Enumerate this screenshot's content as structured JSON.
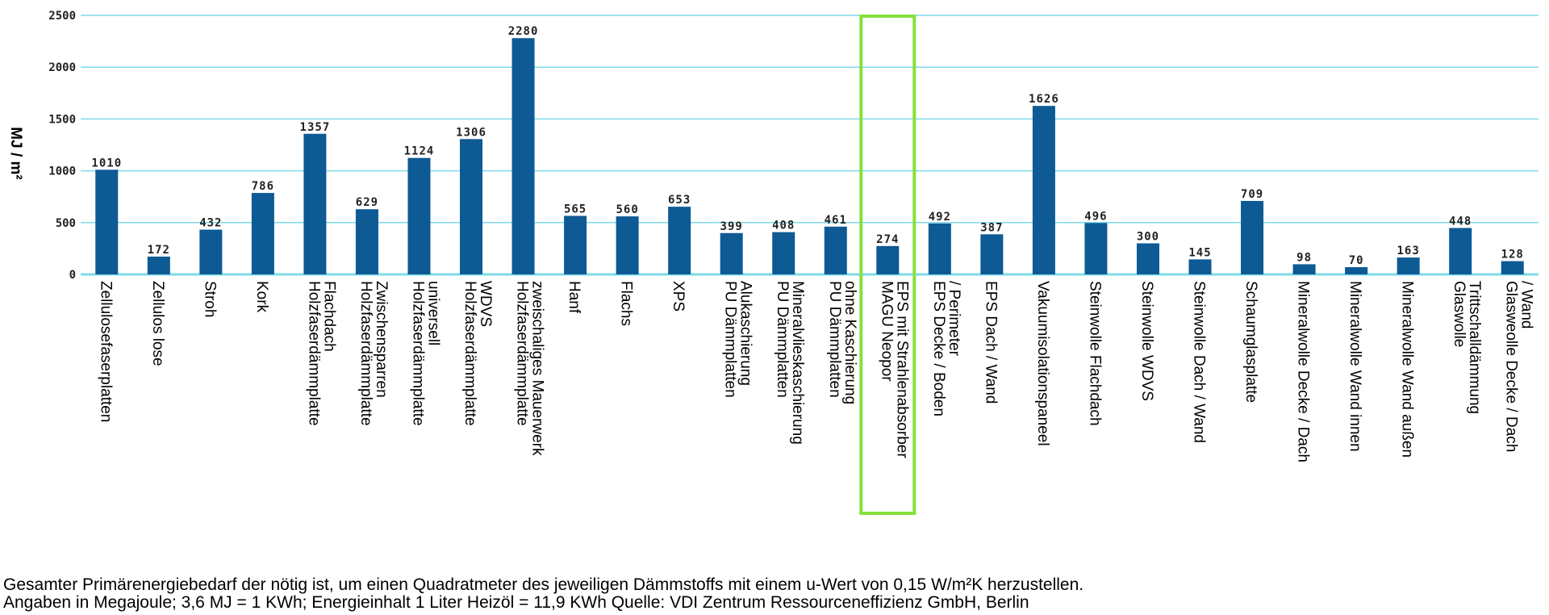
{
  "chart_data": {
    "type": "bar",
    "ylabel": "MJ / m²",
    "ylim": [
      0,
      2500
    ],
    "yticks": [
      0,
      500,
      1000,
      1500,
      2000,
      2500
    ],
    "grid": true,
    "bar_color": "#0d5a94",
    "grid_color": "#7fdbe8",
    "highlight_color": "#86e03b",
    "highlight_index": 15,
    "categories": [
      "Zellulosefaserplatten",
      "Zellulos lose",
      "Stroh",
      "Kork",
      "Holzfaserdämmplatte\nFlachdach",
      "Holzfaserdämmplatte\nZwischensparren",
      "Holzfaserdämmplatte\nuniversell",
      "Holzfaserdämmplatte\nWDVS",
      "Holzfaserdämmplatte\nzweischaliges Mauerwerk",
      "Hanf",
      "Flachs",
      "XPS",
      "PU Dämmplatten\nAlukaschierung",
      "PU Dämmplatten\nMineralvlieskaschierung",
      "PU Dämmplatten\nohne Kaschierung",
      "MAGU Neopor\nEPS mit Strahlenabsorber",
      "EPS Decke / Boden\n/ Perimeter",
      "EPS Dach / Wand",
      "Vakuumisolationspaneel",
      "Steinwolle Flachdach",
      "Steinwolle WDVS",
      "Steinwolle Dach / Wand",
      "Schaumglasplatte",
      "Mineralwolle Decke / Dach",
      "Mineralwolle Wand innen",
      "Mineralwolle Wand außen",
      "Glaswolle\nTrittschalldämmung",
      "Glasweolle Decke / Dach\n/ Wand"
    ],
    "values": [
      1010,
      172,
      432,
      786,
      1357,
      629,
      1124,
      1306,
      2280,
      565,
      560,
      653,
      399,
      408,
      461,
      274,
      492,
      387,
      1626,
      496,
      300,
      145,
      709,
      98,
      70,
      163,
      448,
      128
    ]
  },
  "footnote": {
    "line1": "Gesamter Primärenergiebedarf der nötig ist, um einen Quadratmeter des jeweiligen Dämmstoffs mit einem u-Wert von 0,15 W/m²K herzustellen.",
    "line2": "Angaben in Megajoule; 3,6 MJ = 1 KWh; Energieinhalt 1 Liter Heizöl = 11,9 KWh  Quelle: VDI Zentrum Ressourceneffizienz GmbH, Berlin"
  }
}
